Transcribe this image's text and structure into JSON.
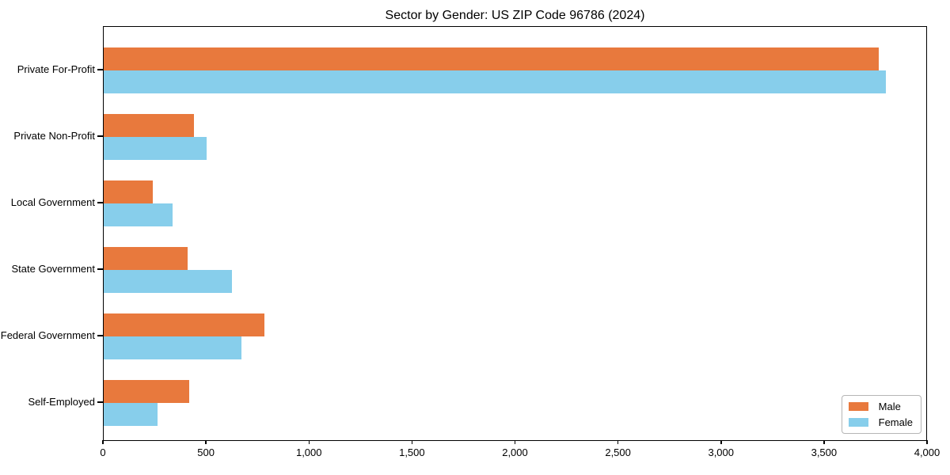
{
  "chart_data": {
    "type": "bar",
    "orientation": "horizontal",
    "title": "Sector by Gender: US ZIP Code 96786 (2024)",
    "categories": [
      "Private For-Profit",
      "Private Non-Profit",
      "Local Government",
      "State Government",
      "Federal Government",
      "Self-Employed"
    ],
    "series": [
      {
        "name": "Male",
        "color": "#E8793D",
        "values": [
          3770,
          440,
          240,
          410,
          780,
          415
        ]
      },
      {
        "name": "Female",
        "color": "#87CEEB",
        "values": [
          3805,
          500,
          335,
          625,
          670,
          260
        ]
      }
    ],
    "xlim": [
      0,
      4000
    ],
    "xticks": [
      0,
      500,
      1000,
      1500,
      2000,
      2500,
      3000,
      3500,
      4000
    ],
    "xtick_labels": [
      "0",
      "500",
      "1,000",
      "1,500",
      "2,000",
      "2,500",
      "3,000",
      "3,500",
      "4,000"
    ],
    "legend_position": "lower right",
    "grid": false,
    "background_color": "#ffffff",
    "spine_color": "#000000"
  }
}
